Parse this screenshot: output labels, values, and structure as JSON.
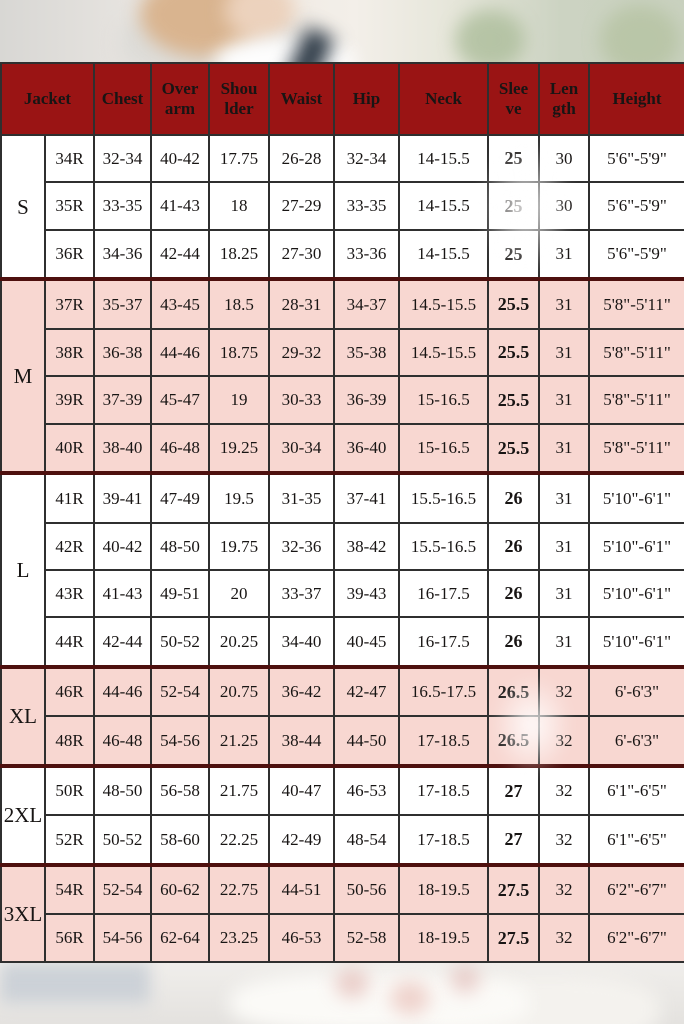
{
  "chart_data": {
    "type": "table",
    "columns": [
      "Jacket",
      "Chest",
      "Over arm",
      "Shou lder",
      "Waist",
      "Hip",
      "Neck",
      "Slee ve",
      "Len gth",
      "Height"
    ],
    "row_groups": [
      {
        "size": "S",
        "shade": "white",
        "rows": [
          [
            "34R",
            "32-34",
            "40-42",
            "17.75",
            "26-28",
            "32-34",
            "14-15.5",
            "25",
            "30",
            "5'6\"-5'9\""
          ],
          [
            "35R",
            "33-35",
            "41-43",
            "18",
            "27-29",
            "33-35",
            "14-15.5",
            "25",
            "30",
            "5'6\"-5'9\""
          ],
          [
            "36R",
            "34-36",
            "42-44",
            "18.25",
            "27-30",
            "33-36",
            "14-15.5",
            "25",
            "31",
            "5'6\"-5'9\""
          ]
        ]
      },
      {
        "size": "M",
        "shade": "pink",
        "rows": [
          [
            "37R",
            "35-37",
            "43-45",
            "18.5",
            "28-31",
            "34-37",
            "14.5-15.5",
            "25.5",
            "31",
            "5'8\"-5'11\""
          ],
          [
            "38R",
            "36-38",
            "44-46",
            "18.75",
            "29-32",
            "35-38",
            "14.5-15.5",
            "25.5",
            "31",
            "5'8\"-5'11\""
          ],
          [
            "39R",
            "37-39",
            "45-47",
            "19",
            "30-33",
            "36-39",
            "15-16.5",
            "25.5",
            "31",
            "5'8\"-5'11\""
          ],
          [
            "40R",
            "38-40",
            "46-48",
            "19.25",
            "30-34",
            "36-40",
            "15-16.5",
            "25.5",
            "31",
            "5'8\"-5'11\""
          ]
        ]
      },
      {
        "size": "L",
        "shade": "white",
        "rows": [
          [
            "41R",
            "39-41",
            "47-49",
            "19.5",
            "31-35",
            "37-41",
            "15.5-16.5",
            "26",
            "31",
            "5'10\"-6'1\""
          ],
          [
            "42R",
            "40-42",
            "48-50",
            "19.75",
            "32-36",
            "38-42",
            "15.5-16.5",
            "26",
            "31",
            "5'10\"-6'1\""
          ],
          [
            "43R",
            "41-43",
            "49-51",
            "20",
            "33-37",
            "39-43",
            "16-17.5",
            "26",
            "31",
            "5'10\"-6'1\""
          ],
          [
            "44R",
            "42-44",
            "50-52",
            "20.25",
            "34-40",
            "40-45",
            "16-17.5",
            "26",
            "31",
            "5'10\"-6'1\""
          ]
        ]
      },
      {
        "size": "XL",
        "shade": "pink",
        "rows": [
          [
            "46R",
            "44-46",
            "52-54",
            "20.75",
            "36-42",
            "42-47",
            "16.5-17.5",
            "26.5",
            "32",
            "6'-6'3\""
          ],
          [
            "48R",
            "46-48",
            "54-56",
            "21.25",
            "38-44",
            "44-50",
            "17-18.5",
            "26.5",
            "32",
            "6'-6'3\""
          ]
        ]
      },
      {
        "size": "2XL",
        "shade": "white",
        "rows": [
          [
            "50R",
            "48-50",
            "56-58",
            "21.75",
            "40-47",
            "46-53",
            "17-18.5",
            "27",
            "32",
            "6'1\"-6'5\""
          ],
          [
            "52R",
            "50-52",
            "58-60",
            "22.25",
            "42-49",
            "48-54",
            "17-18.5",
            "27",
            "32",
            "6'1\"-6'5\""
          ]
        ]
      },
      {
        "size": "3XL",
        "shade": "pink",
        "rows": [
          [
            "54R",
            "52-54",
            "60-62",
            "22.75",
            "44-51",
            "50-56",
            "18-19.5",
            "27.5",
            "32",
            "6'2\"-6'7\""
          ],
          [
            "56R",
            "54-56",
            "62-64",
            "23.25",
            "46-53",
            "52-58",
            "18-19.5",
            "27.5",
            "32",
            "6'2\"-6'7\""
          ]
        ]
      }
    ],
    "layout": {
      "header_bg": "#9a1414",
      "header_text": "#f7ece6",
      "pink_row_bg": "#f8d7d1",
      "white_row_bg": "#ffffff",
      "grid_color": "#2f2f2f",
      "section_border_color": "#4e100e"
    }
  }
}
